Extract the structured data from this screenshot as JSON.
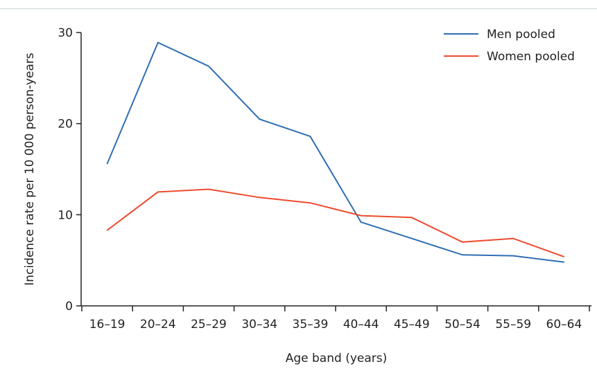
{
  "chart_data": {
    "type": "line",
    "title": "",
    "xlabel": "Age band (years)",
    "ylabel": "Incidence rate per 10 000 person-years",
    "categories": [
      "16–19",
      "20–24",
      "25–29",
      "30–34",
      "35–39",
      "40–44",
      "45–49",
      "50–54",
      "55–59",
      "60–64"
    ],
    "yticks": [
      0,
      10,
      20,
      30
    ],
    "ylim": [
      0,
      30
    ],
    "grid": false,
    "legend_position": "top-right",
    "series": [
      {
        "name": "Men pooled",
        "color": "#2e6db4",
        "values": [
          15.6,
          28.9,
          26.3,
          20.5,
          18.6,
          9.2,
          7.4,
          5.6,
          5.5,
          4.8
        ]
      },
      {
        "name": "Women pooled",
        "color": "#ee4a2f",
        "values": [
          8.3,
          12.5,
          12.8,
          11.9,
          11.3,
          9.9,
          9.7,
          7.0,
          7.4,
          5.4
        ]
      }
    ]
  }
}
